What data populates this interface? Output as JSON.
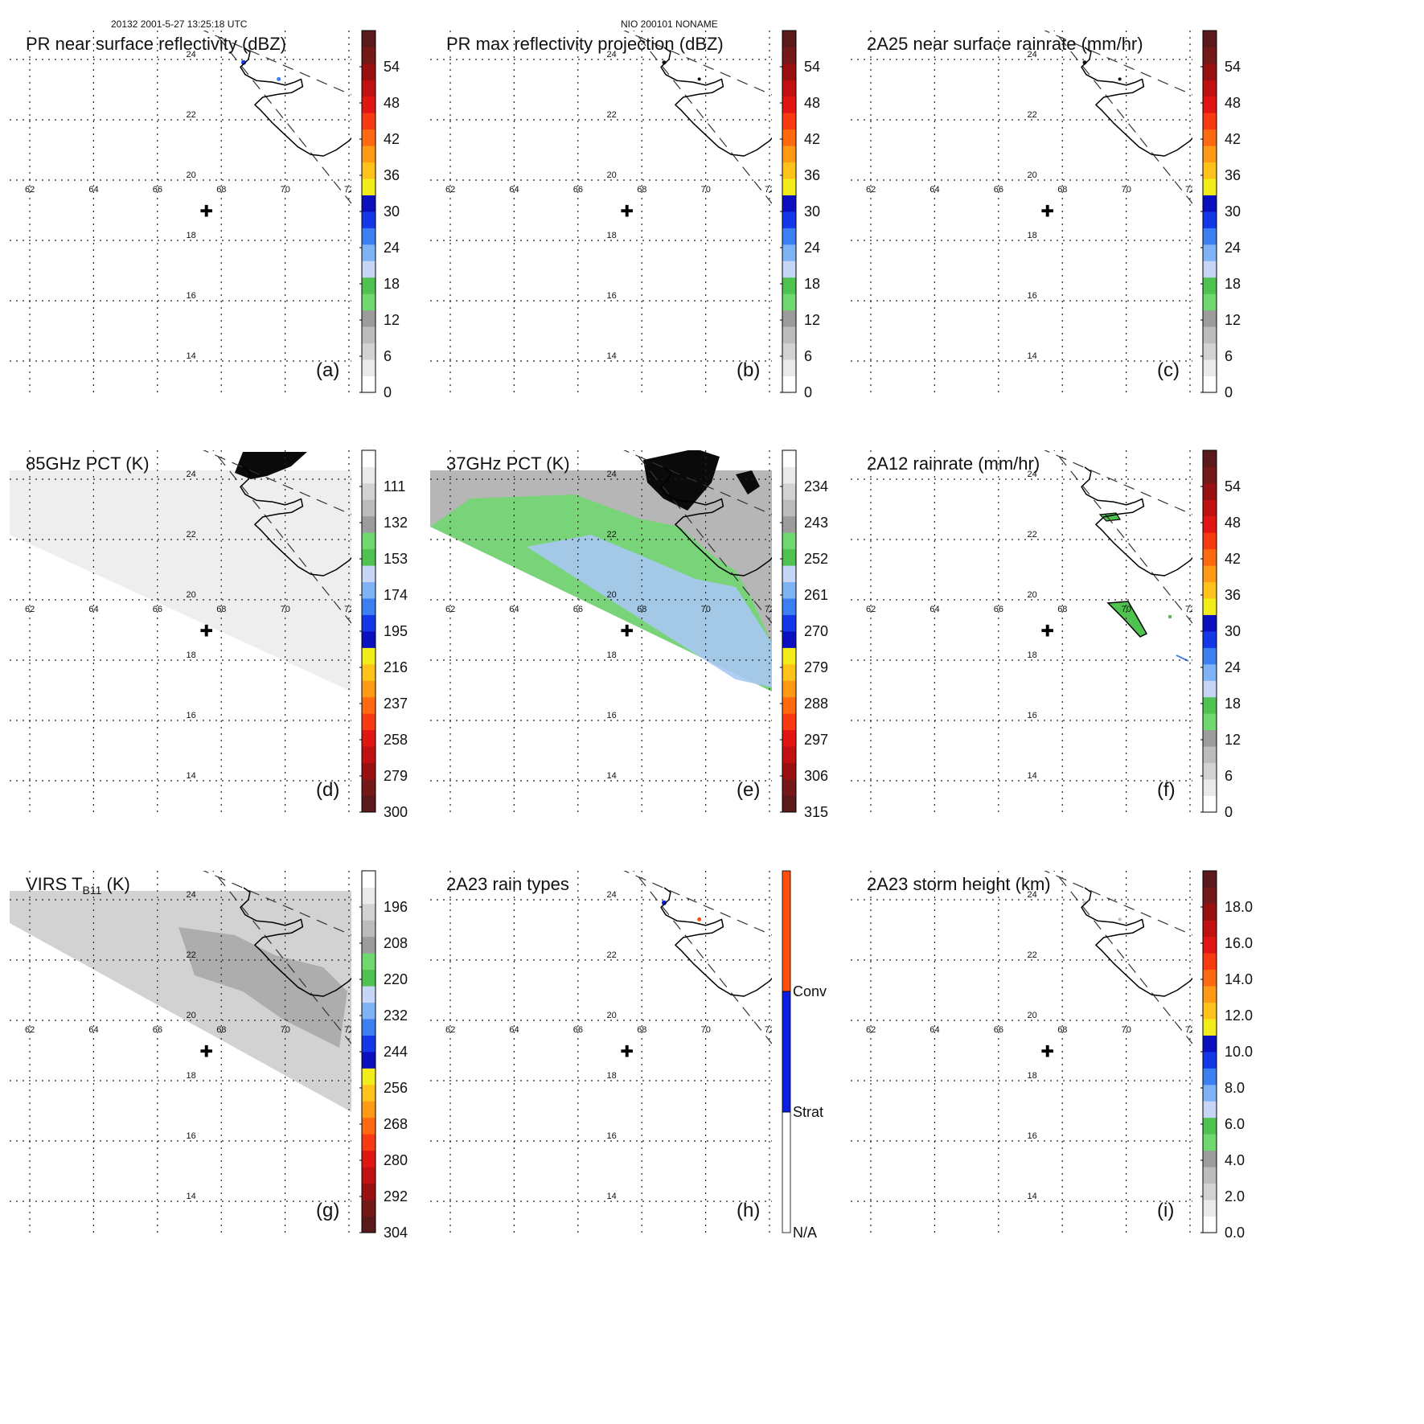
{
  "header": {
    "left": "20132 2001-5-27 13:25:18 UTC",
    "center": "NIO 200101 NONAME"
  },
  "chart_data": [
    {
      "type": "heatmap",
      "panel": "(a)",
      "title": "PR near surface reflectivity (dBZ)",
      "lon_ticks": [
        "62",
        "64",
        "66",
        "68",
        "70",
        "72"
      ],
      "lat_ticks": [
        "24",
        "22",
        "20",
        "18",
        "16",
        "14"
      ],
      "colorbar": {
        "min": 0,
        "max": 60,
        "ticks": [
          "0",
          "6",
          "12",
          "18",
          "24",
          "30",
          "36",
          "42",
          "48",
          "54"
        ]
      },
      "field": "rain-spots"
    },
    {
      "type": "heatmap",
      "panel": "(b)",
      "title": "PR max reflectivity projection (dBZ)",
      "lon_ticks": [
        "62",
        "64",
        "66",
        "68",
        "70",
        "72"
      ],
      "lat_ticks": [
        "24",
        "22",
        "20",
        "18",
        "16",
        "14"
      ],
      "colorbar": {
        "min": 0,
        "max": 60,
        "ticks": [
          "0",
          "6",
          "12",
          "18",
          "24",
          "30",
          "36",
          "42",
          "48",
          "54"
        ]
      },
      "field": "dark-spots"
    },
    {
      "type": "heatmap",
      "panel": "(c)",
      "title": "2A25 near surface rainrate (mm/hr)",
      "lon_ticks": [
        "62",
        "64",
        "66",
        "68",
        "70",
        "72"
      ],
      "lat_ticks": [
        "24",
        "22",
        "20",
        "18",
        "16",
        "14"
      ],
      "colorbar": {
        "min": 0,
        "max": 60,
        "ticks": [
          "0",
          "6",
          "12",
          "18",
          "24",
          "30",
          "36",
          "42",
          "48",
          "54"
        ]
      },
      "field": "dark-spots"
    },
    {
      "type": "heatmap",
      "panel": "(d)",
      "title": "85GHz PCT (K)",
      "lon_ticks": [
        "62",
        "64",
        "66",
        "68",
        "70",
        "72"
      ],
      "lat_ticks": [
        "24",
        "22",
        "20",
        "18",
        "16",
        "14"
      ],
      "colorbar": {
        "min": 90,
        "max": 300,
        "ticks": [
          "300",
          "279",
          "258",
          "237",
          "216",
          "195",
          "174",
          "153",
          "132",
          "111"
        ]
      },
      "field": "swath-85"
    },
    {
      "type": "heatmap",
      "panel": "(e)",
      "title": "37GHz PCT (K)",
      "lon_ticks": [
        "62",
        "64",
        "66",
        "68",
        "70",
        "72"
      ],
      "lat_ticks": [
        "24",
        "22",
        "20",
        "18",
        "16",
        "14"
      ],
      "colorbar": {
        "min": 225,
        "max": 315,
        "ticks": [
          "315",
          "306",
          "297",
          "288",
          "279",
          "270",
          "261",
          "252",
          "243",
          "234"
        ]
      },
      "field": "swath-37"
    },
    {
      "type": "heatmap",
      "panel": "(f)",
      "title": "2A12 rainrate (mm/hr)",
      "lon_ticks": [
        "62",
        "64",
        "66",
        "68",
        "70",
        "72"
      ],
      "lat_ticks": [
        "24",
        "22",
        "20",
        "18",
        "16",
        "14"
      ],
      "colorbar": {
        "min": 0,
        "max": 60,
        "ticks": [
          "0",
          "6",
          "12",
          "18",
          "24",
          "30",
          "36",
          "42",
          "48",
          "54"
        ]
      },
      "field": "rain-2a12"
    },
    {
      "type": "heatmap",
      "panel": "(g)",
      "title": "VIRS T",
      "title_sub": "B11",
      "title_tail": " (K)",
      "lon_ticks": [
        "62",
        "64",
        "66",
        "68",
        "70",
        "72"
      ],
      "lat_ticks": [
        "24",
        "22",
        "20",
        "18",
        "16",
        "14"
      ],
      "colorbar": {
        "min": 184,
        "max": 304,
        "ticks": [
          "304",
          "292",
          "280",
          "268",
          "256",
          "244",
          "232",
          "220",
          "208",
          "196"
        ]
      },
      "field": "swath-virs"
    },
    {
      "type": "heatmap",
      "panel": "(h)",
      "title": "2A23 rain types",
      "lon_ticks": [
        "62",
        "64",
        "66",
        "68",
        "70",
        "72"
      ],
      "lat_ticks": [
        "24",
        "22",
        "20",
        "18",
        "16",
        "14"
      ],
      "colorbar": {
        "categorical": [
          "N/A",
          "Strat",
          "Conv"
        ],
        "colors": [
          "#ffffff",
          "#0a1fe0",
          "#ff4e10"
        ]
      },
      "field": "rain-types"
    },
    {
      "type": "heatmap",
      "panel": "(i)",
      "title": "2A23 storm height (km)",
      "lon_ticks": [
        "62",
        "64",
        "66",
        "68",
        "70",
        "72"
      ],
      "lat_ticks": [
        "24",
        "22",
        "20",
        "18",
        "16",
        "14"
      ],
      "colorbar": {
        "min": 0,
        "max": 20,
        "ticks": [
          "0.0",
          "2.0",
          "4.0",
          "6.0",
          "8.0",
          "10.0",
          "12.0",
          "14.0",
          "16.0",
          "18.0"
        ]
      },
      "field": "gray-spots"
    }
  ]
}
